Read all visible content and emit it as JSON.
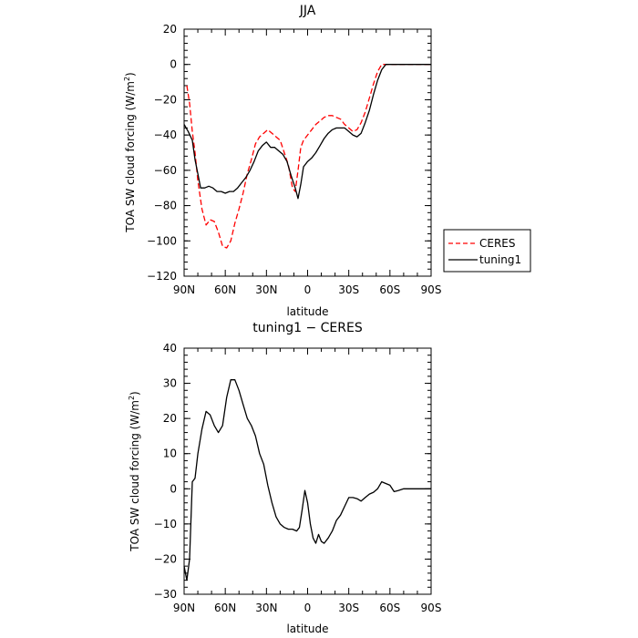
{
  "chart_data": [
    {
      "type": "line",
      "title": "JJA",
      "xlabel": "latitude",
      "ylabel": "TOA SW cloud forcing (W/m2)",
      "ylabel_main": "TOA SW cloud forcing (W/m",
      "ylabel_sup": "2",
      "ylabel_close": ")",
      "xlim": [
        90,
        -90
      ],
      "ylim": [
        -120,
        20
      ],
      "xticks": [
        90,
        60,
        30,
        0,
        -30,
        -60,
        -90
      ],
      "xtick_labels": [
        "90N",
        "60N",
        "30N",
        "0",
        "30S",
        "60S",
        "90S"
      ],
      "yticks": [
        -120,
        -100,
        -80,
        -60,
        -40,
        -20,
        0,
        20
      ],
      "ytick_labels": [
        "−120",
        "−100",
        "−80",
        "−60",
        "−40",
        "−20",
        "0",
        "20"
      ],
      "legend": {
        "placement": "right",
        "entries": [
          "CERES",
          "tuning1"
        ]
      },
      "series": [
        {
          "name": "CERES",
          "color": "#ff0000",
          "dash": "dashed",
          "points": [
            [
              88,
              -12
            ],
            [
              86,
              -22
            ],
            [
              84,
              -38
            ],
            [
              82,
              -50
            ],
            [
              80,
              -66
            ],
            [
              77,
              -82
            ],
            [
              74,
              -91
            ],
            [
              71,
              -88
            ],
            [
              68,
              -89
            ],
            [
              65,
              -95
            ],
            [
              62,
              -103
            ],
            [
              59,
              -104
            ],
            [
              56,
              -100
            ],
            [
              53,
              -90
            ],
            [
              50,
              -82
            ],
            [
              47,
              -73
            ],
            [
              44,
              -62
            ],
            [
              41,
              -54
            ],
            [
              38,
              -45
            ],
            [
              35,
              -41
            ],
            [
              32,
              -39
            ],
            [
              29,
              -37
            ],
            [
              26,
              -39
            ],
            [
              23,
              -41
            ],
            [
              20,
              -43
            ],
            [
              17,
              -50
            ],
            [
              14,
              -57
            ],
            [
              11,
              -70
            ],
            [
              9,
              -72
            ],
            [
              7,
              -60
            ],
            [
              5,
              -47
            ],
            [
              3,
              -43
            ],
            [
              0,
              -40
            ],
            [
              -3,
              -37
            ],
            [
              -6,
              -34
            ],
            [
              -9,
              -32
            ],
            [
              -12,
              -30
            ],
            [
              -15,
              -29
            ],
            [
              -18,
              -29
            ],
            [
              -21,
              -30
            ],
            [
              -24,
              -31
            ],
            [
              -27,
              -34
            ],
            [
              -30,
              -36
            ],
            [
              -33,
              -38
            ],
            [
              -36,
              -37
            ],
            [
              -39,
              -33
            ],
            [
              -42,
              -27
            ],
            [
              -45,
              -19
            ],
            [
              -48,
              -11
            ],
            [
              -51,
              -4
            ],
            [
              -54,
              0
            ],
            [
              -57,
              0
            ],
            [
              -60,
              0
            ],
            [
              -65,
              0
            ],
            [
              -70,
              0
            ],
            [
              -75,
              0
            ],
            [
              -80,
              0
            ],
            [
              -85,
              0
            ],
            [
              -90,
              0
            ]
          ]
        },
        {
          "name": "tuning1",
          "color": "#000000",
          "dash": "solid",
          "points": [
            [
              90,
              -34
            ],
            [
              87,
              -38
            ],
            [
              84,
              -43
            ],
            [
              82,
              -54
            ],
            [
              80,
              -62
            ],
            [
              78,
              -70
            ],
            [
              75,
              -70
            ],
            [
              72,
              -69
            ],
            [
              69,
              -70
            ],
            [
              66,
              -72
            ],
            [
              63,
              -72
            ],
            [
              60,
              -73
            ],
            [
              57,
              -72
            ],
            [
              54,
              -72
            ],
            [
              51,
              -70
            ],
            [
              48,
              -67
            ],
            [
              45,
              -64
            ],
            [
              42,
              -60
            ],
            [
              39,
              -55
            ],
            [
              36,
              -49
            ],
            [
              33,
              -46
            ],
            [
              30,
              -44
            ],
            [
              27,
              -47
            ],
            [
              24,
              -47
            ],
            [
              21,
              -49
            ],
            [
              18,
              -51
            ],
            [
              15,
              -55
            ],
            [
              12,
              -63
            ],
            [
              9,
              -70
            ],
            [
              7,
              -76
            ],
            [
              5,
              -68
            ],
            [
              3,
              -58
            ],
            [
              0,
              -55
            ],
            [
              -3,
              -53
            ],
            [
              -6,
              -50
            ],
            [
              -9,
              -46
            ],
            [
              -12,
              -42
            ],
            [
              -15,
              -39
            ],
            [
              -18,
              -37
            ],
            [
              -21,
              -36
            ],
            [
              -24,
              -36
            ],
            [
              -27,
              -36
            ],
            [
              -30,
              -38
            ],
            [
              -33,
              -40
            ],
            [
              -36,
              -41
            ],
            [
              -39,
              -39
            ],
            [
              -42,
              -33
            ],
            [
              -45,
              -26
            ],
            [
              -48,
              -17
            ],
            [
              -51,
              -9
            ],
            [
              -54,
              -3
            ],
            [
              -57,
              0
            ],
            [
              -60,
              0
            ],
            [
              -65,
              0
            ],
            [
              -70,
              0
            ],
            [
              -75,
              0
            ],
            [
              -80,
              0
            ],
            [
              -85,
              0
            ],
            [
              -90,
              0
            ]
          ]
        }
      ]
    },
    {
      "type": "line",
      "title": "tuning1 − CERES",
      "xlabel": "latitude",
      "ylabel": "TOA SW cloud forcing (W/m2)",
      "ylabel_main": "TOA SW cloud forcing (W/m",
      "ylabel_sup": "2",
      "ylabel_close": ")",
      "xlim": [
        90,
        -90
      ],
      "ylim": [
        -30,
        40
      ],
      "xticks": [
        90,
        60,
        30,
        0,
        -30,
        -60,
        -90
      ],
      "xtick_labels": [
        "90N",
        "60N",
        "30N",
        "0",
        "30S",
        "60S",
        "90S"
      ],
      "yticks": [
        -30,
        -20,
        -10,
        0,
        10,
        20,
        30,
        40
      ],
      "ytick_labels": [
        "−30",
        "−20",
        "−10",
        "0",
        "10",
        "20",
        "30",
        "40"
      ],
      "series": [
        {
          "name": "",
          "color": "#000000",
          "dash": "solid",
          "points": [
            [
              90,
              -22
            ],
            [
              88,
              -26
            ],
            [
              86,
              -20
            ],
            [
              84,
              2
            ],
            [
              82,
              3
            ],
            [
              80,
              10
            ],
            [
              77,
              17
            ],
            [
              74,
              22
            ],
            [
              71,
              21
            ],
            [
              68,
              18
            ],
            [
              65,
              16
            ],
            [
              62,
              18
            ],
            [
              59,
              26
            ],
            [
              56,
              31
            ],
            [
              53,
              31
            ],
            [
              50,
              28
            ],
            [
              47,
              24
            ],
            [
              44,
              20
            ],
            [
              41,
              18
            ],
            [
              38,
              15
            ],
            [
              35,
              10
            ],
            [
              32,
              7
            ],
            [
              29,
              1
            ],
            [
              26,
              -4
            ],
            [
              23,
              -8
            ],
            [
              20,
              -10
            ],
            [
              17,
              -11
            ],
            [
              14,
              -11.5
            ],
            [
              11,
              -11.5
            ],
            [
              8,
              -12
            ],
            [
              6,
              -11
            ],
            [
              4,
              -6
            ],
            [
              2,
              -0.5
            ],
            [
              0,
              -4
            ],
            [
              -2,
              -10
            ],
            [
              -4,
              -14
            ],
            [
              -6,
              -15.5
            ],
            [
              -8,
              -13
            ],
            [
              -10,
              -15
            ],
            [
              -12,
              -15.5
            ],
            [
              -15,
              -14
            ],
            [
              -18,
              -12
            ],
            [
              -21,
              -9
            ],
            [
              -24,
              -7.5
            ],
            [
              -27,
              -5
            ],
            [
              -30,
              -2.5
            ],
            [
              -33,
              -2.5
            ],
            [
              -36,
              -2.8
            ],
            [
              -39,
              -3.5
            ],
            [
              -42,
              -2.5
            ],
            [
              -45,
              -1.5
            ],
            [
              -48,
              -1
            ],
            [
              -51,
              0
            ],
            [
              -54,
              2
            ],
            [
              -57,
              1.5
            ],
            [
              -60,
              1
            ],
            [
              -63,
              -0.8
            ],
            [
              -66,
              -0.5
            ],
            [
              -70,
              0
            ],
            [
              -75,
              0
            ],
            [
              -80,
              0
            ],
            [
              -85,
              0
            ],
            [
              -90,
              0
            ]
          ]
        }
      ]
    }
  ]
}
